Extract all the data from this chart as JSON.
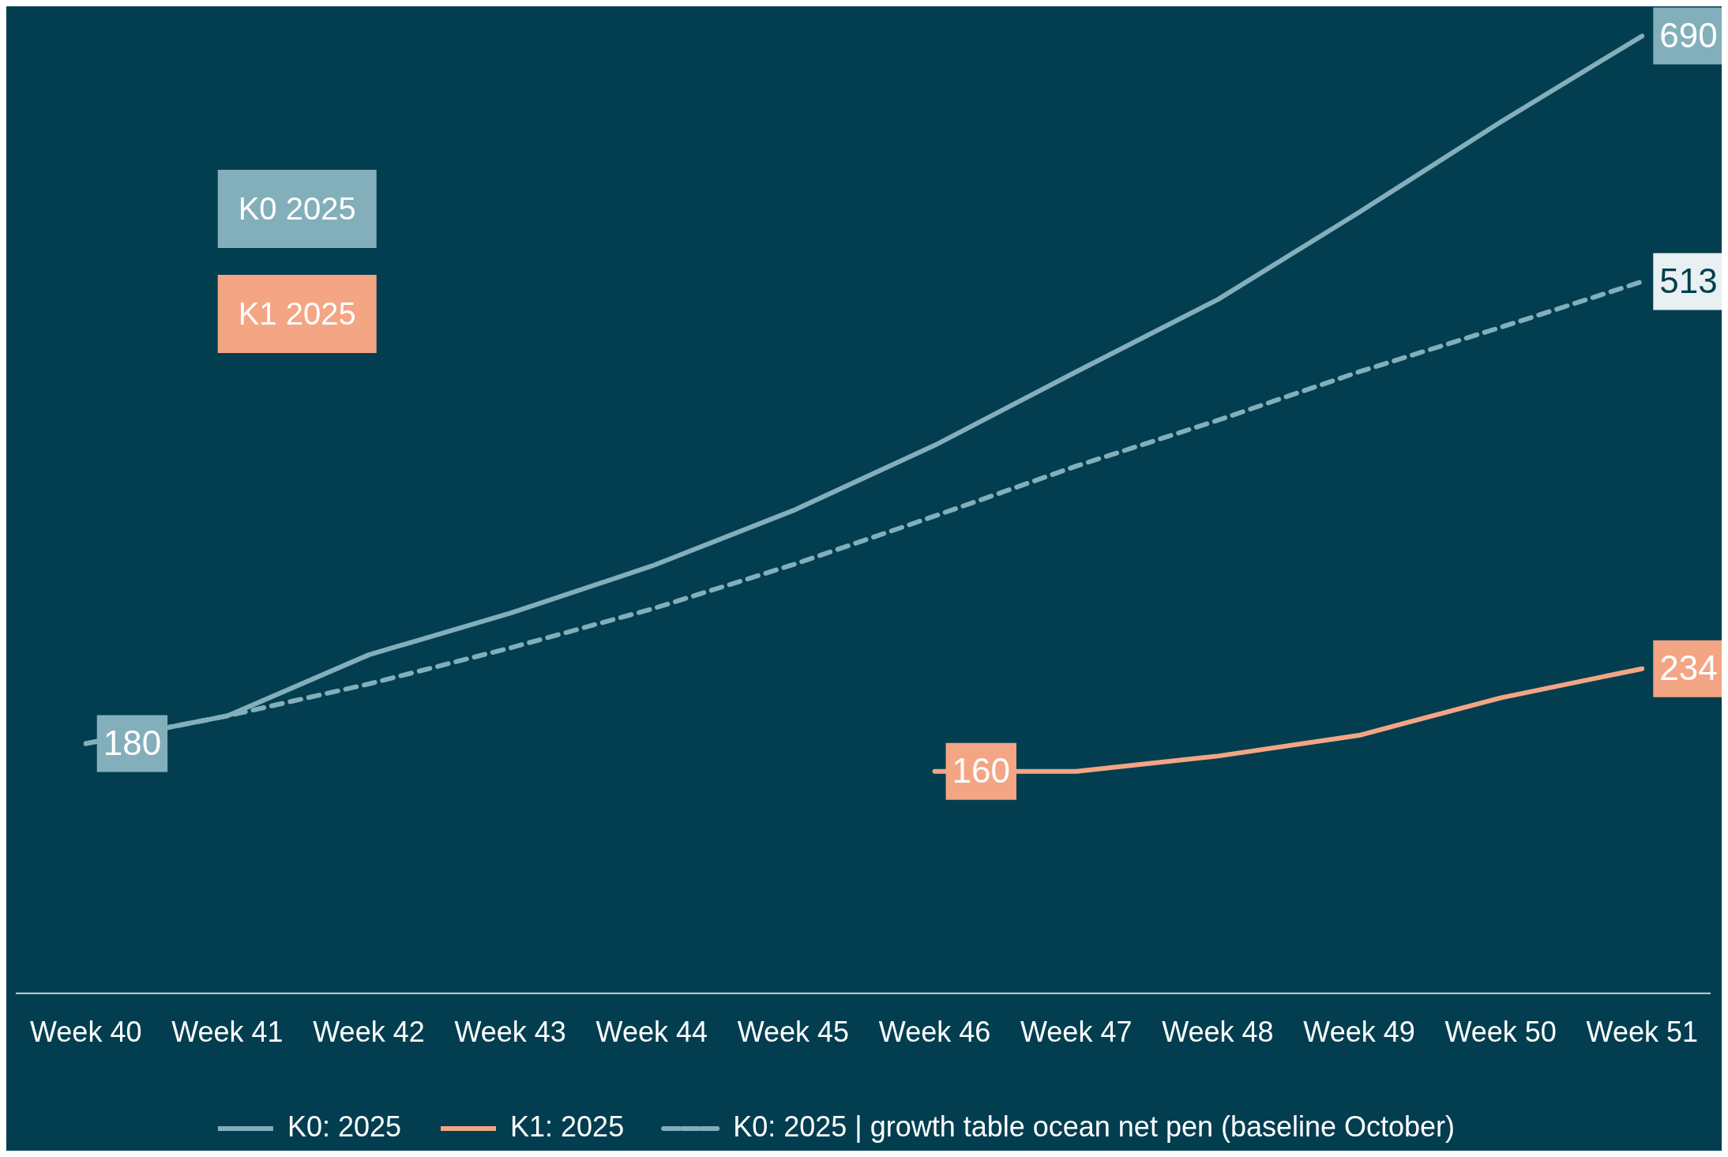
{
  "chart_data": {
    "type": "line",
    "categories": [
      "Week 40",
      "Week 41",
      "Week 42",
      "Week 43",
      "Week 44",
      "Week 45",
      "Week 46",
      "Week 47",
      "Week 48",
      "Week 49",
      "Week 50",
      "Week 51"
    ],
    "series": [
      {
        "name": "K0: 2025",
        "color": "#82afba",
        "line_style": "solid",
        "values": [
          180,
          200,
          244,
          274,
          308,
          348,
          395,
          448,
          500,
          563,
          628,
          690
        ],
        "value_labels": [
          "180",
          null,
          null,
          null,
          null,
          null,
          null,
          null,
          null,
          null,
          null,
          "690"
        ]
      },
      {
        "name": "K1: 2025",
        "color": "#f4a584",
        "line_style": "solid",
        "values": [
          null,
          null,
          null,
          null,
          null,
          null,
          160,
          160,
          171,
          186,
          213,
          234
        ],
        "value_labels": [
          null,
          null,
          null,
          null,
          null,
          null,
          "160",
          null,
          null,
          null,
          null,
          "234"
        ]
      },
      {
        "name": "K0: 2025 | growth table ocean net pen (baseline October)",
        "color": "#82afba",
        "line_style": "dashed",
        "values": [
          180,
          200,
          223,
          249,
          277,
          309,
          344,
          380,
          413,
          448,
          480,
          513
        ],
        "value_labels": [
          null,
          null,
          null,
          null,
          null,
          null,
          null,
          null,
          null,
          null,
          null,
          "513"
        ]
      }
    ],
    "annotations": [
      "K0 2025",
      "K1 2025"
    ],
    "grid": false,
    "legend": "bottom"
  }
}
